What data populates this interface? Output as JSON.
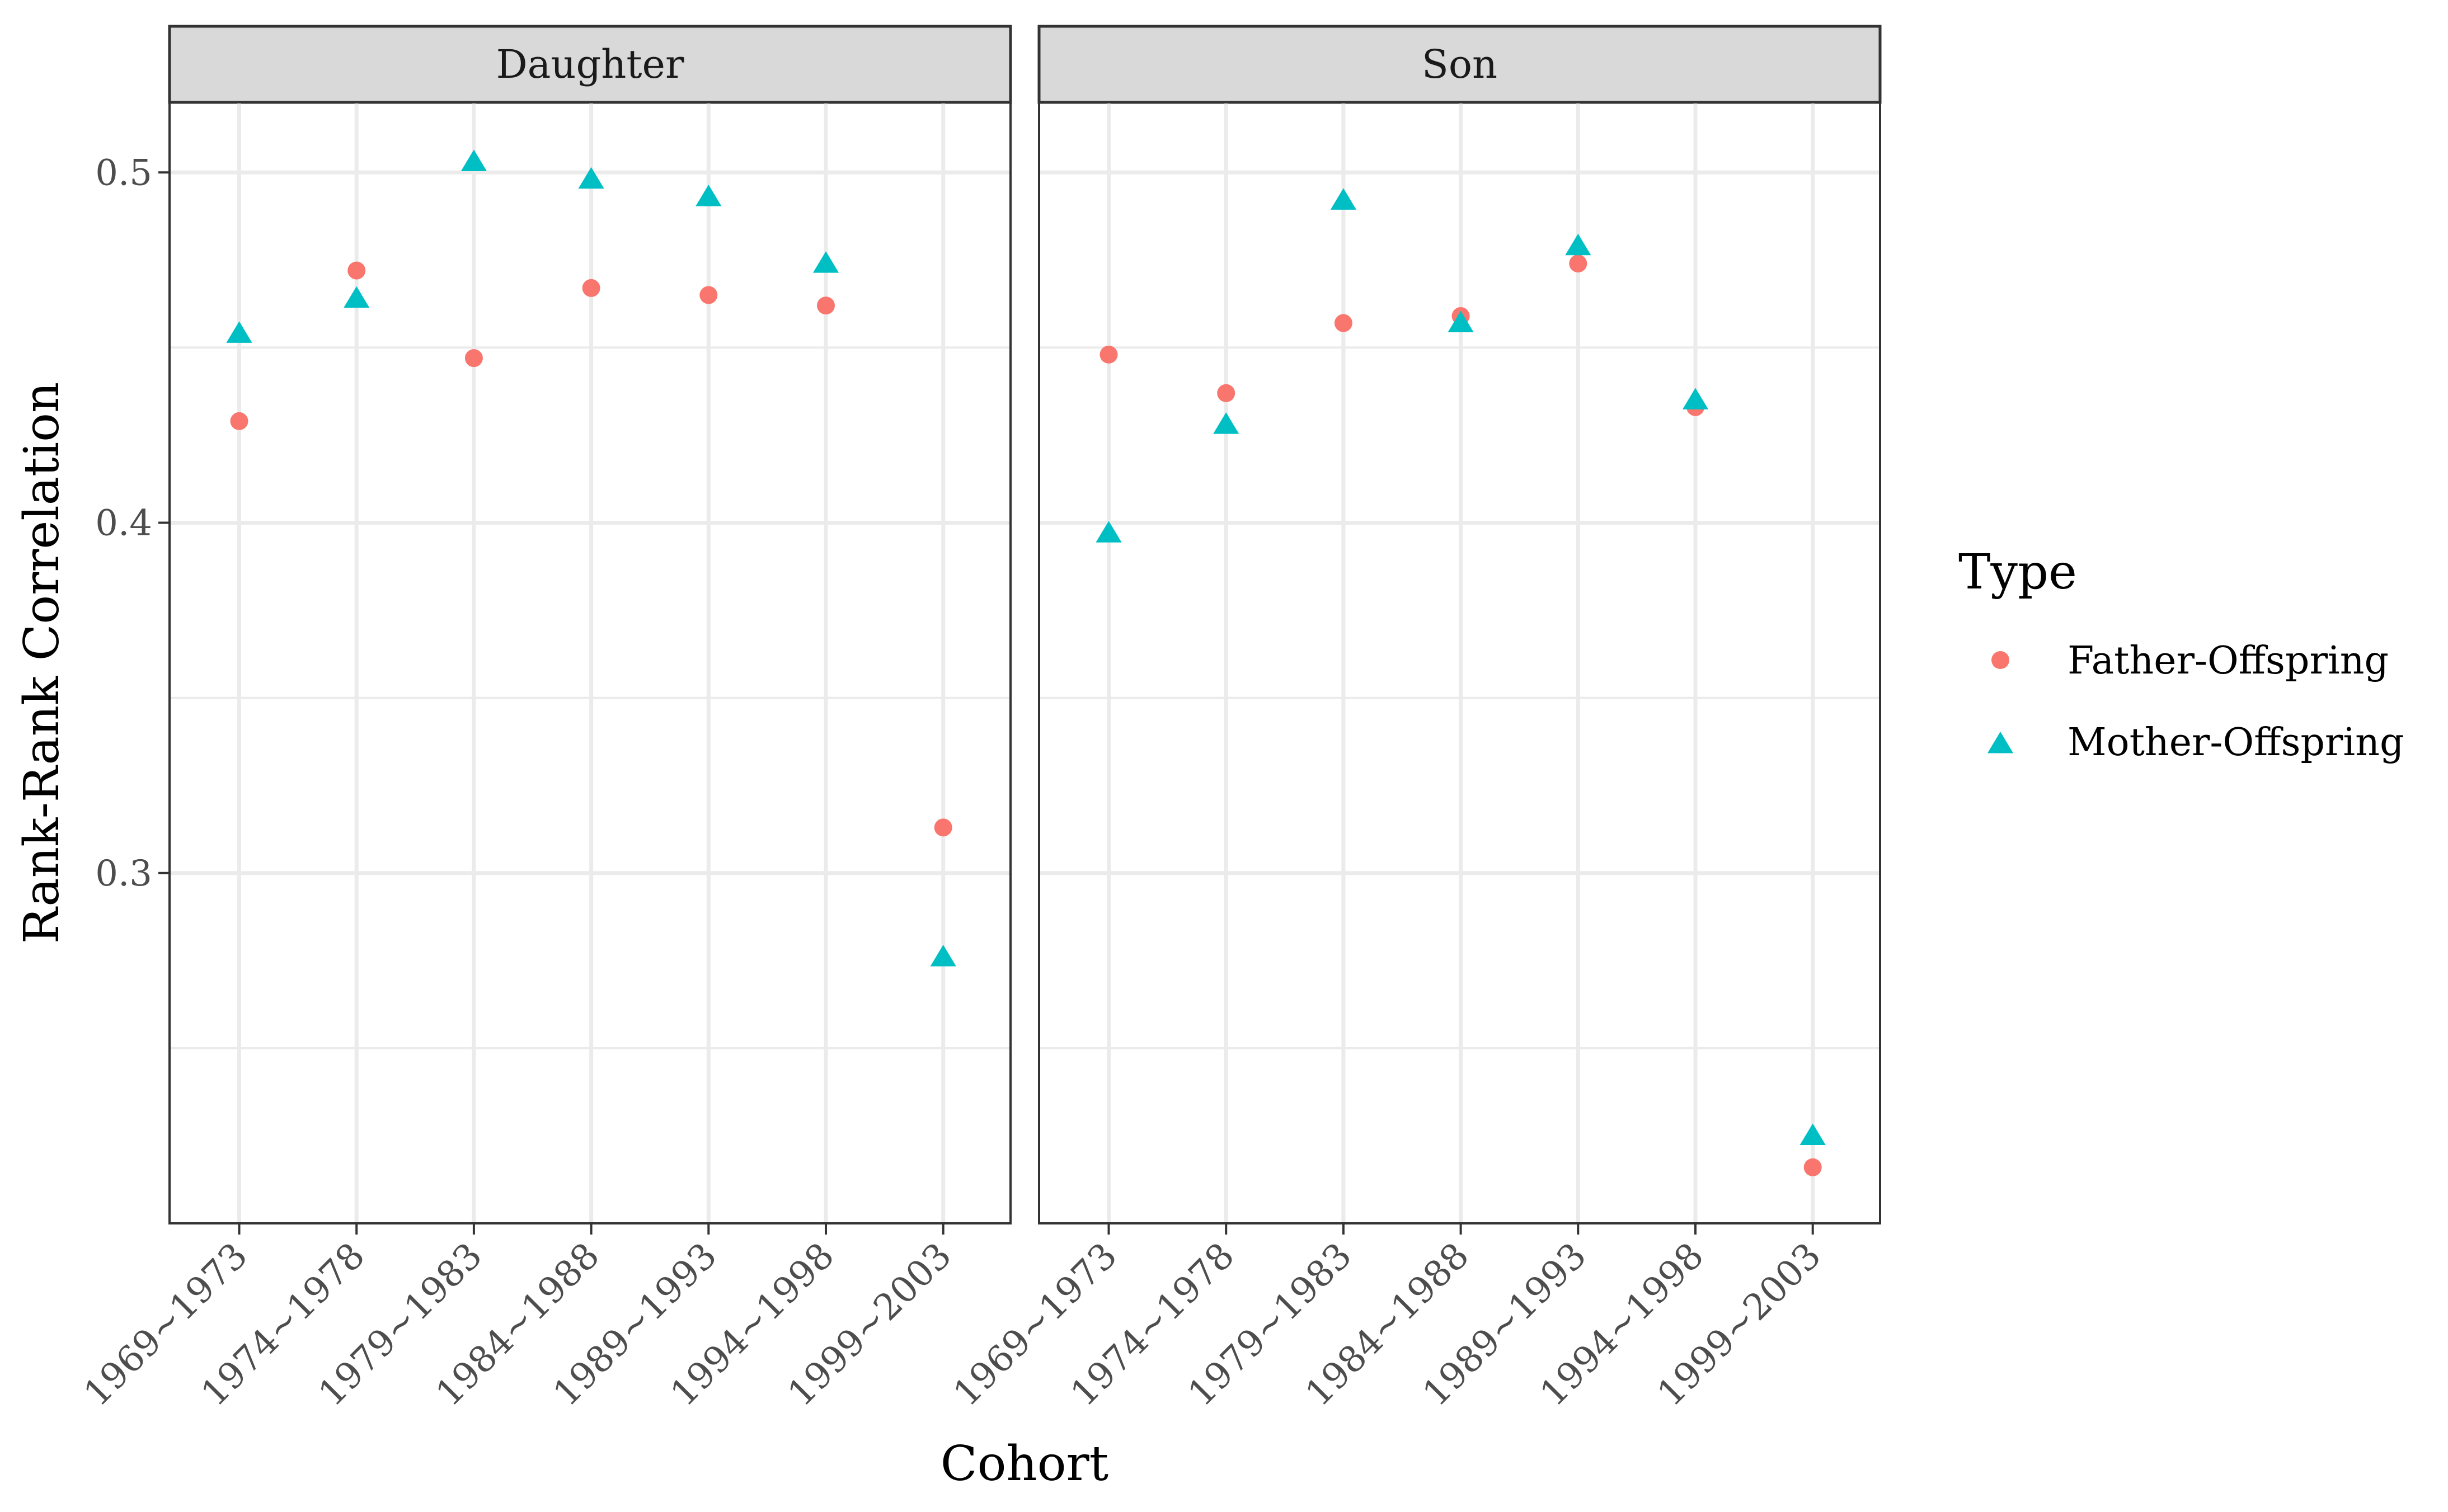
{
  "chart_data": {
    "type": "scatter",
    "facets": [
      "Daughter",
      "Son"
    ],
    "categories": [
      "1969~1973",
      "1974~1978",
      "1979~1983",
      "1984~1988",
      "1989~1993",
      "1994~1998",
      "1999~2003"
    ],
    "xlabel": "Cohort",
    "ylabel": "Rank-Rank Correlation",
    "ylim": [
      0.2,
      0.52
    ],
    "y_ticks": [
      "0.3",
      "0.4",
      "0.5"
    ],
    "grid": true,
    "legend": {
      "title": "Type",
      "position": "right"
    },
    "series": [
      {
        "name": "Father-Offspring",
        "shape": "circle",
        "color": "#F8766D",
        "values": {
          "Daughter": [
            0.429,
            0.472,
            0.447,
            0.467,
            0.465,
            0.462,
            0.313
          ],
          "Son": [
            0.448,
            0.437,
            0.457,
            0.459,
            0.474,
            0.433,
            0.216
          ]
        }
      },
      {
        "name": "Mother-Offspring",
        "shape": "triangle",
        "color": "#00BFC4",
        "values": {
          "Daughter": [
            0.454,
            0.464,
            0.503,
            0.498,
            0.493,
            0.474,
            0.276
          ],
          "Son": [
            0.397,
            0.428,
            0.492,
            0.457,
            0.479,
            0.435,
            0.225
          ]
        }
      }
    ]
  }
}
